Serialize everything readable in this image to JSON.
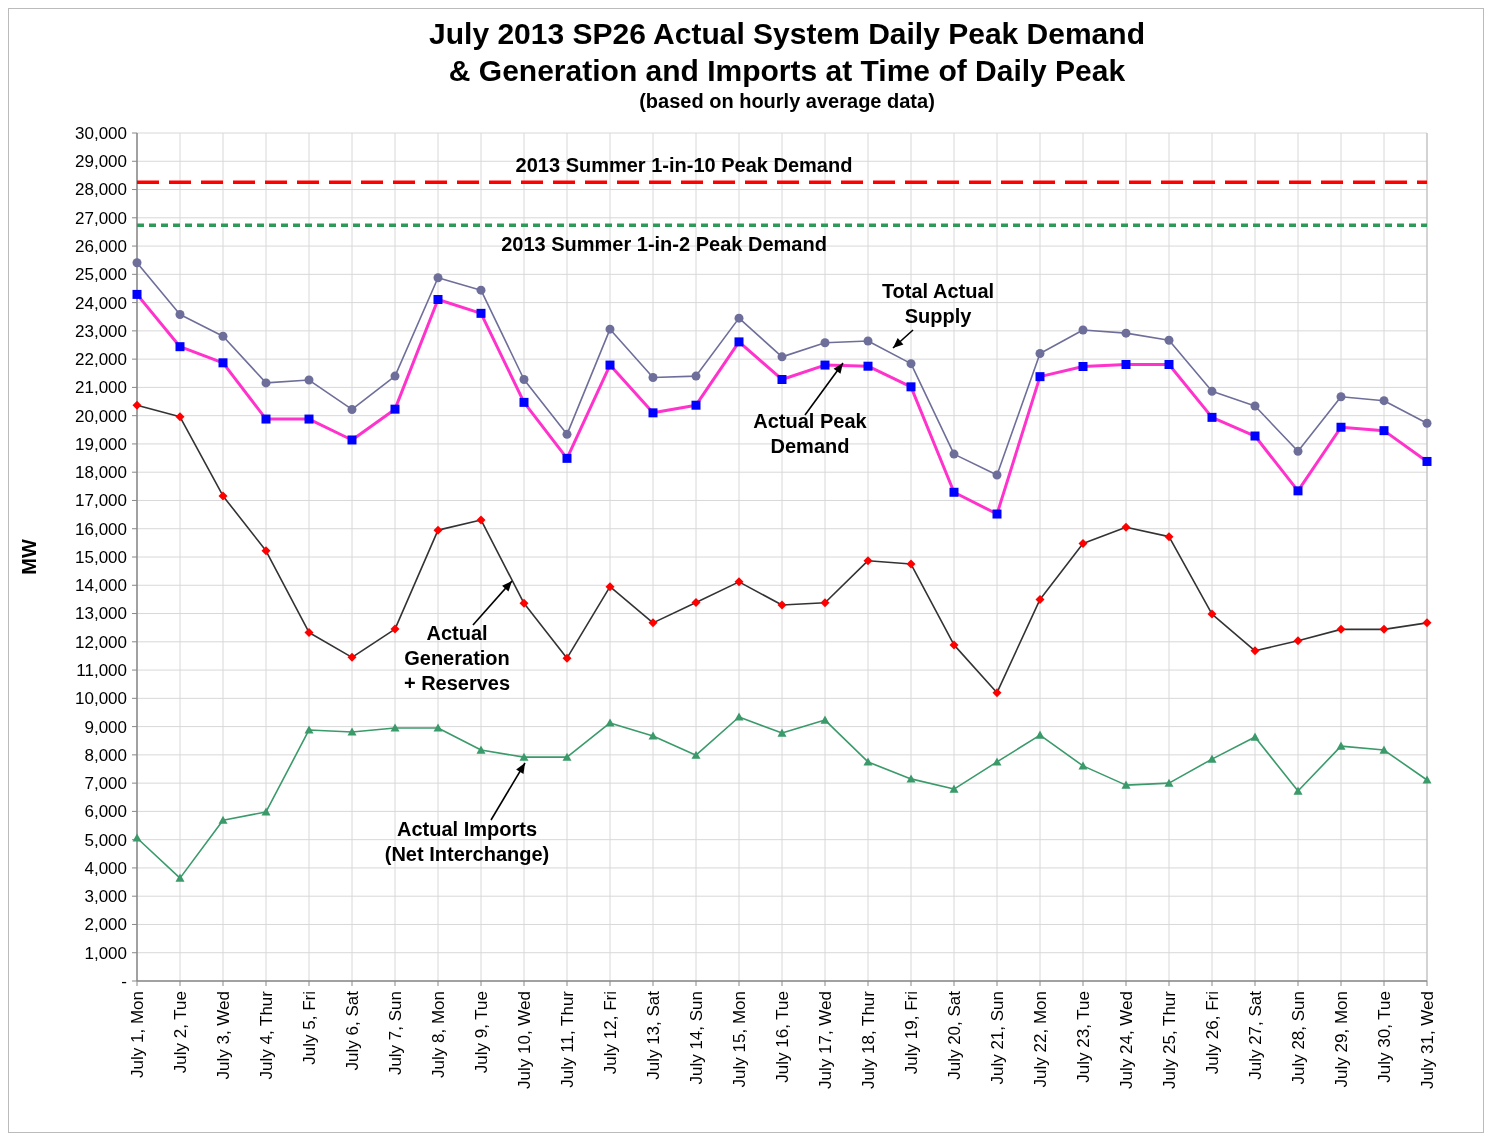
{
  "chart_data": {
    "type": "line",
    "title": "July 2013 SP26 Actual System Daily Peak Demand\n& Generation and Imports at Time of Daily Peak",
    "subtitle": "(based on hourly average data)",
    "ylabel": "MW",
    "categories": [
      "July 1, Mon",
      "July 2, Tue",
      "July 3, Wed",
      "July 4, Thur",
      "July 5, Fri",
      "July 6, Sat",
      "July 7, Sun",
      "July 8, Mon",
      "July 9, Tue",
      "July 10, Wed",
      "July 11, Thur",
      "July 12, Fri",
      "July 13, Sat",
      "July 14, Sun",
      "July 15, Mon",
      "July 16, Tue",
      "July 17, Wed",
      "July 18, Thur",
      "July 19, Fri",
      "July 20, Sat",
      "July 21, Sun",
      "July 22, Mon",
      "July 23, Tue",
      "July 24, Wed",
      "July 25, Thur",
      "July 26, Fri",
      "July 27, Sat",
      "July 28, Sun",
      "July 29, Mon",
      "July 30, Tue",
      "July 31, Wed"
    ],
    "series": [
      {
        "name": "Total Actual\nSupply",
        "color": "#6e6e9a",
        "marker": "circle",
        "values": [
          25410,
          23580,
          22810,
          21160,
          21260,
          20220,
          21400,
          24880,
          24440,
          21280,
          19340,
          23060,
          21350,
          21400,
          23450,
          22080,
          22580,
          22640,
          21840,
          18640,
          17900,
          22200,
          23030,
          22920,
          22670,
          20860,
          20340,
          18740,
          20670,
          20530,
          19730
        ]
      },
      {
        "name": "Actual Peak\nDemand",
        "color": "#ff33cc",
        "marker": "square",
        "values": [
          24290,
          22440,
          21870,
          19880,
          19880,
          19140,
          20230,
          24110,
          23620,
          20470,
          18490,
          21790,
          20100,
          20370,
          22610,
          21280,
          21790,
          21750,
          21020,
          17290,
          16520,
          21380,
          21740,
          21810,
          21810,
          19940,
          19280,
          17340,
          19590,
          19470,
          18380
        ]
      },
      {
        "name": "Actual\nGeneration\n+ Reserves",
        "color": "#333333",
        "marker": "diamond",
        "values": [
          20370,
          19960,
          17160,
          15220,
          12330,
          11450,
          12450,
          15950,
          16310,
          13360,
          11420,
          13950,
          12670,
          13390,
          14120,
          13300,
          13380,
          14870,
          14750,
          11890,
          10200,
          13500,
          15480,
          16050,
          15720,
          12980,
          11680,
          12040,
          12440,
          12440,
          12670
        ]
      },
      {
        "name": "Actual Imports\n(Net Interchange)",
        "color": "#3a9a6a",
        "marker": "triangle",
        "values": [
          5060,
          3640,
          5690,
          5980,
          8880,
          8810,
          8950,
          8950,
          8170,
          7920,
          7920,
          9130,
          8670,
          7990,
          9340,
          8770,
          9230,
          7750,
          7150,
          6790,
          7750,
          8700,
          7610,
          6930,
          7000,
          7850,
          8630,
          6720,
          8310,
          8170,
          7110
        ]
      }
    ],
    "ref_lines": [
      {
        "axis": "y",
        "value": 28260,
        "label": "2013 Summer 1-in-10 Peak Demand",
        "color": "#ff0000",
        "line_style": "dashed"
      },
      {
        "axis": "y",
        "value": 26740,
        "label": "2013 Summer 1-in-2 Peak Demand",
        "color": "#2e9a5a",
        "line_style": "dotted"
      }
    ],
    "ylim": [
      0,
      30000
    ],
    "yticks": [
      {
        "value": 0,
        "label": "-"
      },
      {
        "value": 1000,
        "label": "1,000"
      },
      {
        "value": 2000,
        "label": "2,000"
      },
      {
        "value": 3000,
        "label": "3,000"
      },
      {
        "value": 4000,
        "label": "4,000"
      },
      {
        "value": 5000,
        "label": "5,000"
      },
      {
        "value": 6000,
        "label": "6,000"
      },
      {
        "value": 7000,
        "label": "7,000"
      },
      {
        "value": 8000,
        "label": "8,000"
      },
      {
        "value": 9000,
        "label": "9,000"
      },
      {
        "value": 10000,
        "label": "10,000"
      },
      {
        "value": 11000,
        "label": "11,000"
      },
      {
        "value": 12000,
        "label": "12,000"
      },
      {
        "value": 13000,
        "label": "13,000"
      },
      {
        "value": 14000,
        "label": "14,000"
      },
      {
        "value": 15000,
        "label": "15,000"
      },
      {
        "value": 16000,
        "label": "16,000"
      },
      {
        "value": 17000,
        "label": "17,000"
      },
      {
        "value": 18000,
        "label": "18,000"
      },
      {
        "value": 19000,
        "label": "19,000"
      },
      {
        "value": 20000,
        "label": "20,000"
      },
      {
        "value": 21000,
        "label": "21,000"
      },
      {
        "value": 22000,
        "label": "22,000"
      },
      {
        "value": 23000,
        "label": "23,000"
      },
      {
        "value": 24000,
        "label": "24,000"
      },
      {
        "value": 25000,
        "label": "25,000"
      },
      {
        "value": 26000,
        "label": "26,000"
      },
      {
        "value": 27000,
        "label": "27,000"
      },
      {
        "value": 28000,
        "label": "28,000"
      },
      {
        "value": 29000,
        "label": "29,000"
      },
      {
        "value": 30000,
        "label": "30,000"
      }
    ],
    "grid": true
  }
}
